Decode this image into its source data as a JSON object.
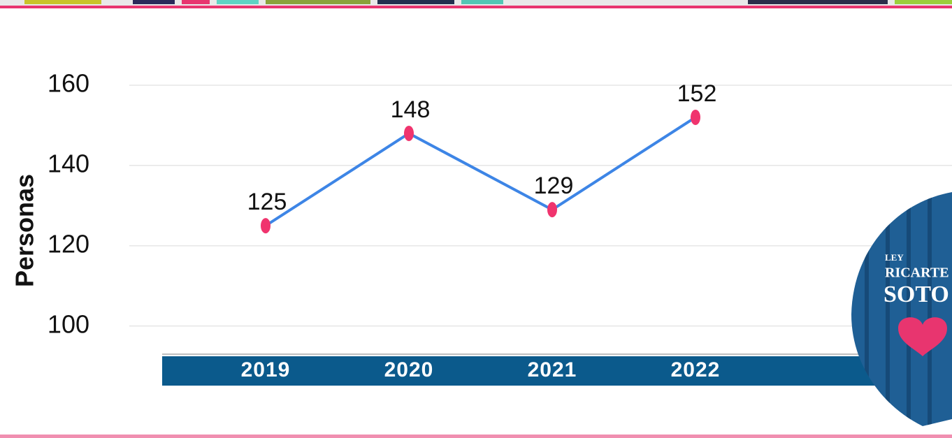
{
  "chart_data": {
    "type": "line",
    "y_label": "Personas",
    "categories": [
      "2019",
      "2020",
      "2021",
      "2022"
    ],
    "series": [
      {
        "name": "Personas",
        "color": "#3d85e6",
        "marker_color": "#f0346e",
        "values": [
          125,
          148,
          129,
          152
        ]
      }
    ],
    "ylim": [
      93,
      164
    ],
    "yticks": [
      100,
      120,
      140,
      160
    ],
    "grid": true
  },
  "logo": {
    "line1": "LEY",
    "line2": "RICARTE",
    "line3": "SOTO"
  }
}
